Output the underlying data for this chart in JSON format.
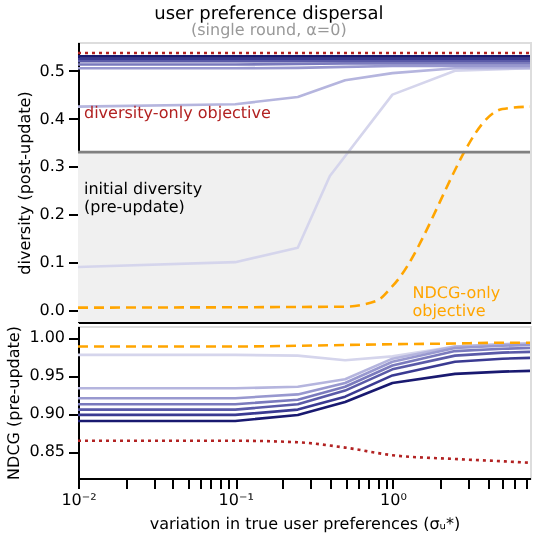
{
  "chart_data": [
    {
      "type": "line",
      "title": "user preference dispersal",
      "subtitle": "(single round, α=0)",
      "ylabel": "diversity (post-update)",
      "xlim": [
        0.01,
        7.5
      ],
      "ylim": [
        -0.025,
        0.56
      ],
      "yticks": [
        {
          "value": 0,
          "label": "0.0"
        },
        0.1,
        0.2,
        0.3,
        0.4,
        0.5
      ],
      "log": "x",
      "tick_labels": "y",
      "grid": false,
      "x": [
        0.01,
        0.1,
        0.25,
        0.5,
        1,
        2.5,
        5,
        7.5
      ],
      "bands": [
        {
          "axis": "y",
          "from": -0.025,
          "to": 0.33,
          "color": "#f0f0f0"
        }
      ],
      "ref_lines": [
        {
          "axis": "y",
          "value": 0.33,
          "color": "#808080"
        }
      ],
      "annotations": [
        "diversity-only objective",
        "initial diversity\n(pre-update)",
        "NDCG-only\nobjective"
      ],
      "series": [
        {
          "color": "#d5d5ec",
          "x": [
            0.01,
            0.1,
            0.25,
            0.4,
            1,
            2.5,
            7.5
          ],
          "values": [
            0.09,
            0.1,
            0.13,
            0.28,
            0.45,
            0.5,
            0.505
          ]
        },
        {
          "color": "#b5b5de",
          "values": [
            0.425,
            0.43,
            0.445,
            0.48,
            0.495,
            0.505,
            0.505,
            0.505
          ]
        },
        {
          "color": "#9898cf",
          "values": [
            0.505,
            0.505,
            0.506,
            0.508,
            0.51,
            0.51,
            0.51,
            0.51
          ]
        },
        {
          "color": "#7a7abd",
          "values": [
            0.513,
            0.513,
            0.514,
            0.515,
            0.515,
            0.515,
            0.515,
            0.515
          ]
        },
        {
          "color": "#5a5aa8",
          "values": [
            0.52,
            0.52,
            0.52,
            0.52,
            0.52,
            0.52,
            0.52,
            0.52
          ]
        },
        {
          "color": "#3a3a92",
          "values": [
            0.525,
            0.525,
            0.525,
            0.525,
            0.525,
            0.525,
            0.525,
            0.525
          ]
        },
        {
          "color": "#191970",
          "values": [
            0.53,
            0.53,
            0.53,
            0.53,
            0.53,
            0.53,
            0.53,
            0.53
          ]
        },
        {
          "color": "#b22222",
          "line_style": "dotted",
          "values": [
            0.537,
            0.537,
            0.537,
            0.537,
            0.537,
            0.537,
            0.537,
            0.537
          ]
        },
        {
          "color": "#ffa500",
          "line_style": "dashed",
          "x": [
            0.01,
            0.5,
            0.8,
            1,
            5,
            7.5
          ],
          "values": [
            0.005,
            0.007,
            0.02,
            0.05,
            0.42,
            0.425
          ]
        }
      ]
    },
    {
      "type": "line",
      "ylabel": "NDCG (pre-update)",
      "xlabel": "variation in true user preferences (σᵤ*)",
      "xlim": [
        0.01,
        7.5
      ],
      "ylim": [
        0.815,
        1.015
      ],
      "yticks": [
        0.85,
        {
          "value": 0.9,
          "label": "0.90"
        },
        0.95,
        {
          "value": 1,
          "label": "1.00"
        }
      ],
      "xticks": [
        {
          "value": 0.01,
          "label": "10⁻²"
        },
        {
          "value": 0.02,
          "label": null
        },
        {
          "value": 0.03,
          "label": null
        },
        {
          "value": 0.04,
          "label": null
        },
        {
          "value": 0.05,
          "label": null
        },
        {
          "value": 0.06,
          "label": null
        },
        {
          "value": 0.07,
          "label": null
        },
        {
          "value": 0.08,
          "label": null
        },
        {
          "value": 0.09,
          "label": null
        },
        {
          "value": 0.1,
          "label": "10⁻¹"
        },
        {
          "value": 0.2,
          "label": null
        },
        {
          "value": 0.3,
          "label": null
        },
        {
          "value": 0.4,
          "label": null
        },
        {
          "value": 0.5,
          "label": null
        },
        {
          "value": 0.6,
          "label": null
        },
        {
          "value": 0.7,
          "label": null
        },
        {
          "value": 0.8,
          "label": null
        },
        {
          "value": 0.9,
          "label": null
        },
        {
          "value": 1,
          "label": "10⁰"
        },
        {
          "value": 2,
          "label": null
        },
        {
          "value": 3,
          "label": null
        },
        {
          "value": 4,
          "label": null
        },
        {
          "value": 5,
          "label": null
        },
        {
          "value": 6,
          "label": null
        },
        {
          "value": 7,
          "label": null
        }
      ],
      "log": "x",
      "grid": false,
      "x": [
        0.01,
        0.1,
        0.25,
        0.5,
        1,
        2.5,
        5,
        7.5
      ],
      "series": [
        {
          "color": "#d5d5ec",
          "values": [
            0.977,
            0.977,
            0.976,
            0.97,
            0.975,
            0.988,
            0.991,
            0.992
          ]
        },
        {
          "color": "#b5b5de",
          "values": [
            0.933,
            0.933,
            0.935,
            0.945,
            0.972,
            0.988,
            0.991,
            0.992
          ]
        },
        {
          "color": "#9898cf",
          "values": [
            0.92,
            0.92,
            0.925,
            0.94,
            0.968,
            0.986,
            0.989,
            0.99
          ]
        },
        {
          "color": "#7a7abd",
          "values": [
            0.912,
            0.912,
            0.918,
            0.935,
            0.963,
            0.982,
            0.985,
            0.986
          ]
        },
        {
          "color": "#5a5aa8",
          "values": [
            0.905,
            0.905,
            0.912,
            0.93,
            0.958,
            0.976,
            0.98,
            0.981
          ]
        },
        {
          "color": "#3a3a92",
          "values": [
            0.898,
            0.898,
            0.905,
            0.922,
            0.95,
            0.968,
            0.972,
            0.973
          ]
        },
        {
          "color": "#191970",
          "values": [
            0.89,
            0.89,
            0.898,
            0.915,
            0.94,
            0.952,
            0.955,
            0.956
          ]
        },
        {
          "color": "#b22222",
          "line_style": "dotted",
          "values": [
            0.864,
            0.864,
            0.862,
            0.855,
            0.845,
            0.84,
            0.837,
            0.835
          ]
        },
        {
          "color": "#ffa500",
          "line_style": "dashed",
          "values": [
            0.988,
            0.988,
            0.989,
            0.99,
            0.991,
            0.992,
            0.993,
            0.993
          ]
        }
      ]
    }
  ]
}
